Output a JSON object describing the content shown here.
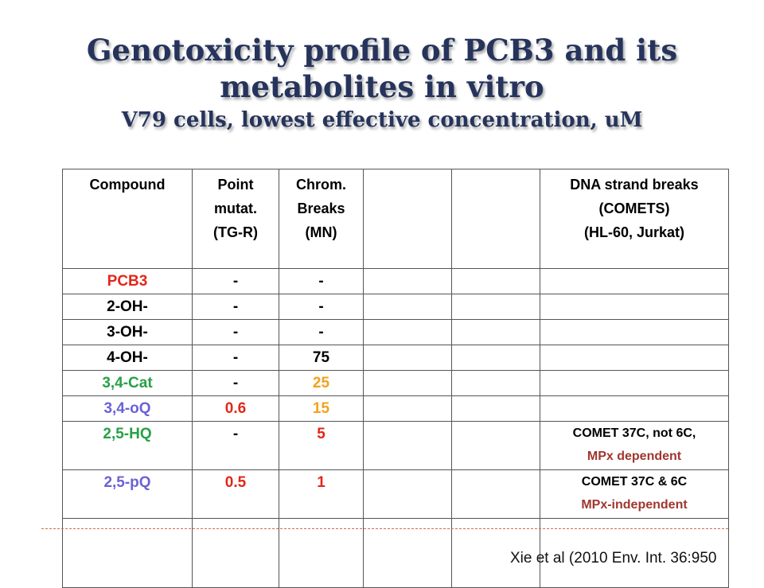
{
  "title": {
    "line1": "Genotoxicity profile of PCB3 and  its",
    "line2": "metabolites in vitro",
    "line3": "V79 cells, lowest effective concentration, uM"
  },
  "table": {
    "headers": {
      "compound": "Compound",
      "point_mut": [
        "Point",
        "mutat.",
        "(TG-R)"
      ],
      "chrom": [
        "Chrom.",
        "Breaks",
        "(MN)"
      ],
      "empty1": "",
      "empty2": "",
      "dna": [
        "DNA strand breaks",
        "(COMETS)",
        "(HL-60, Jurkat)"
      ]
    },
    "rows": [
      {
        "compound": "PCB3",
        "point": "-",
        "chrom": "-",
        "dna1": "",
        "dna2": ""
      },
      {
        "compound": "2-OH-",
        "point": "-",
        "chrom": "-",
        "dna1": "",
        "dna2": ""
      },
      {
        "compound": "3-OH-",
        "point": "-",
        "chrom": "-",
        "dna1": "",
        "dna2": ""
      },
      {
        "compound": "4-OH-",
        "point": "-",
        "chrom": "75",
        "dna1": "",
        "dna2": ""
      },
      {
        "compound": "3,4-Cat",
        "point": "-",
        "chrom": "25",
        "dna1": "",
        "dna2": ""
      },
      {
        "compound": "3,4-oQ",
        "point": "0.6",
        "chrom": "15",
        "dna1": "",
        "dna2": ""
      },
      {
        "compound": "2,5-HQ",
        "point": "-",
        "chrom": "5",
        "dna1": "COMET  37C, not 6C,",
        "dna2": "MPx dependent"
      },
      {
        "compound": "2,5-pQ",
        "point": "0.5",
        "chrom": "1",
        "dna1": "COMET  37C & 6C",
        "dna2": "MPx-independent"
      }
    ]
  },
  "citation": "Xie et al (2010 Env. Int. 36:950",
  "colors": {
    "title": "#26345c",
    "red": "#e32619",
    "green": "#27a046",
    "purple": "#6a62d6",
    "orange": "#f3a21b",
    "brown": "#a0362f"
  }
}
